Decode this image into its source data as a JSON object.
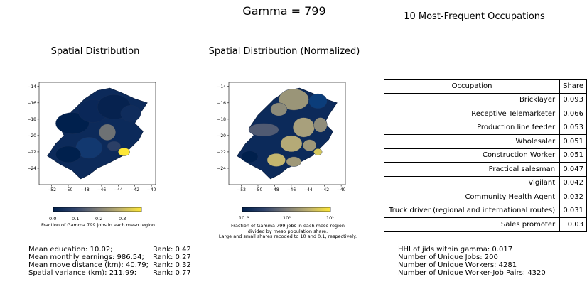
{
  "figure": {
    "suptitle": "Gamma = 799"
  },
  "panels": {
    "left": {
      "title": "Spatial Distribution",
      "colorbar_label": "Fraction of Gamma 799 jobs in each meso region",
      "colorbar_ticks": [
        "0.0",
        "0.1",
        "0.2",
        "0.3"
      ]
    },
    "middle": {
      "title": "Spatial Distribution (Normalized)",
      "colorbar_label_lines": [
        "Fraction of Gamma 799 jobs in each meso region",
        "divided by meso population share.",
        "Large and small shares recoded to 10 and 0.1, respectively."
      ],
      "colorbar_ticks": [
        "10⁻¹",
        "10⁰",
        "10¹"
      ]
    },
    "right": {
      "title": "10 Most-Frequent Occupations"
    }
  },
  "colors": {
    "low": "#00204d",
    "mid": "#7c7b78",
    "high": "#fde737"
  },
  "chart_data": [
    {
      "type": "table",
      "title": "10 Most-Frequent Occupations",
      "columns": [
        "Occupation",
        "Share"
      ],
      "rows": [
        [
          "Bricklayer",
          "0.093"
        ],
        [
          "Receptive Telemarketer",
          "0.066"
        ],
        [
          "Production line feeder",
          "0.053"
        ],
        [
          "Wholesaler",
          "0.051"
        ],
        [
          "Construction Worker",
          "0.051"
        ],
        [
          "Practical salesman",
          "0.047"
        ],
        [
          "Vigilant",
          "0.042"
        ],
        [
          "Community Health Agent",
          "0.032"
        ],
        [
          "Truck driver (regional and international routes)",
          "0.031"
        ],
        [
          "Sales promoter",
          "0.03"
        ]
      ]
    },
    {
      "type": "heatmap",
      "title": "Spatial Distribution",
      "x_ticks": [
        -52,
        -50,
        -48,
        -46,
        -44,
        -42,
        -40
      ],
      "y_ticks": [
        -14,
        -16,
        -18,
        -20,
        -22,
        -24
      ],
      "xlim": [
        -53.5,
        -39.5
      ],
      "ylim": [
        -26,
        -13.5
      ],
      "colorbar_range": [
        0.0,
        0.35
      ]
    },
    {
      "type": "heatmap",
      "title": "Spatial Distribution (Normalized)",
      "x_ticks": [
        -52,
        -50,
        -48,
        -46,
        -44,
        -42,
        -40
      ],
      "y_ticks": [
        -14,
        -16,
        -18,
        -20,
        -22,
        -24
      ],
      "xlim": [
        -53.5,
        -39.5
      ],
      "ylim": [
        -26,
        -13.5
      ],
      "colorbar_scale": "log",
      "colorbar_range": [
        0.1,
        10
      ]
    }
  ],
  "stats_left": [
    {
      "label": "Mean education: 10.02;",
      "rank": "Rank: 0.42"
    },
    {
      "label": "Mean monthly earnings: 986.54;",
      "rank": "Rank: 0.27"
    },
    {
      "label": "Mean move distance (km): 40.79;",
      "rank": "Rank: 0.32"
    },
    {
      "label": "Spatial variance (km): 211.99;",
      "rank": "Rank: 0.77"
    }
  ],
  "stats_right": [
    "HHI of jids within gamma: 0.017",
    "Number of Unique Jobs: 200",
    "Number of Unique Workers: 4281",
    "Number of Unique Worker-Job Pairs: 4320"
  ]
}
